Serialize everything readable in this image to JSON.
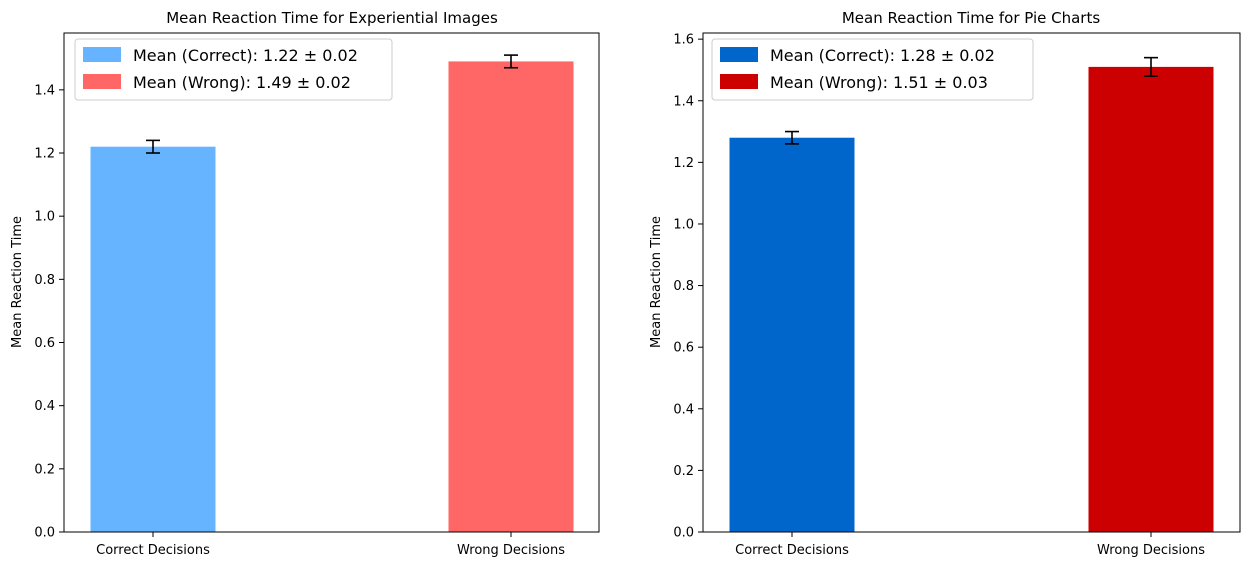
{
  "chart_data": [
    {
      "type": "bar",
      "title": "Mean Reaction Time for Experiential Images",
      "xlabel": "",
      "ylabel": "Mean Reaction Time",
      "categories": [
        "Correct Decisions",
        "Wrong Decisions"
      ],
      "values": [
        1.22,
        1.49
      ],
      "errors": [
        0.02,
        0.02
      ],
      "colors": [
        "#66b3ff",
        "#ff6666"
      ],
      "ylim": [
        0,
        1.58
      ],
      "yticks": [
        0.0,
        0.2,
        0.4,
        0.6,
        0.8,
        1.0,
        1.2,
        1.4
      ],
      "ytick_labels": [
        "0.0",
        "0.2",
        "0.4",
        "0.6",
        "0.8",
        "1.0",
        "1.2",
        "1.4"
      ],
      "grid": false,
      "legend_position": "upper-left",
      "legend": [
        {
          "label": "Mean (Correct): 1.22 ± 0.02",
          "color": "#66b3ff"
        },
        {
          "label": "Mean (Wrong): 1.49 ± 0.02",
          "color": "#ff6666"
        }
      ]
    },
    {
      "type": "bar",
      "title": "Mean Reaction Time for Pie Charts",
      "xlabel": "",
      "ylabel": "Mean Reaction Time",
      "categories": [
        "Correct Decisions",
        "Wrong Decisions"
      ],
      "values": [
        1.28,
        1.51
      ],
      "errors": [
        0.02,
        0.03
      ],
      "colors": [
        "#0066cc",
        "#cc0000"
      ],
      "ylim": [
        0,
        1.62
      ],
      "yticks": [
        0.0,
        0.2,
        0.4,
        0.6,
        0.8,
        1.0,
        1.2,
        1.4,
        1.6
      ],
      "ytick_labels": [
        "0.0",
        "0.2",
        "0.4",
        "0.6",
        "0.8",
        "1.0",
        "1.2",
        "1.4",
        "1.6"
      ],
      "grid": false,
      "legend_position": "upper-left",
      "legend": [
        {
          "label": "Mean (Correct): 1.28 ± 0.02",
          "color": "#0066cc"
        },
        {
          "label": "Mean (Wrong): 1.51 ± 0.03",
          "color": "#cc0000"
        }
      ]
    }
  ]
}
